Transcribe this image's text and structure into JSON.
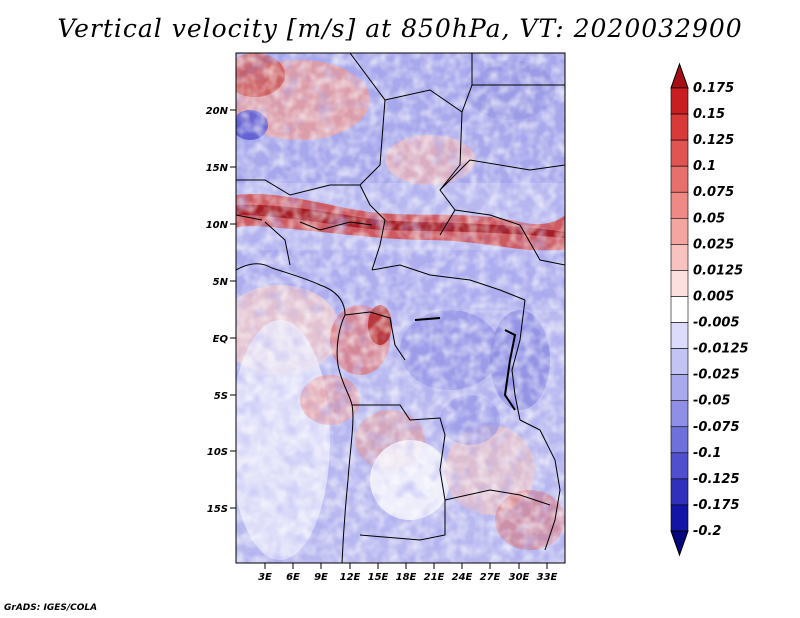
{
  "title": "Vertical velocity [m/s] at 850hPa, VT: 2020032900",
  "footer": "GrADS: IGES/COLA",
  "map": {
    "lat_labels": [
      "20N",
      "15N",
      "10N",
      "5N",
      "EQ",
      "5S",
      "10S",
      "15S"
    ],
    "lon_labels": [
      "3E",
      "6E",
      "9E",
      "12E",
      "15E",
      "18E",
      "21E",
      "24E",
      "27E",
      "30E",
      "33E"
    ]
  },
  "colorbar": {
    "levels": [
      "0.175",
      "0.15",
      "0.125",
      "0.1",
      "0.075",
      "0.05",
      "0.025",
      "0.0125",
      "0.005",
      "-0.005",
      "-0.0125",
      "-0.025",
      "-0.05",
      "-0.075",
      "-0.1",
      "-0.125",
      "-0.175",
      "-0.2"
    ],
    "colors": [
      "#a50f15",
      "#c81d21",
      "#d73a38",
      "#e05552",
      "#e8706c",
      "#ee8a86",
      "#f3a5a2",
      "#f8c2c0",
      "#fce0df",
      "#ffffff",
      "#dcdcfa",
      "#c3c3f4",
      "#a9a9ee",
      "#8f8fe6",
      "#7070dd",
      "#5050cf",
      "#3030bb",
      "#1515a5",
      "#06067e"
    ]
  }
}
